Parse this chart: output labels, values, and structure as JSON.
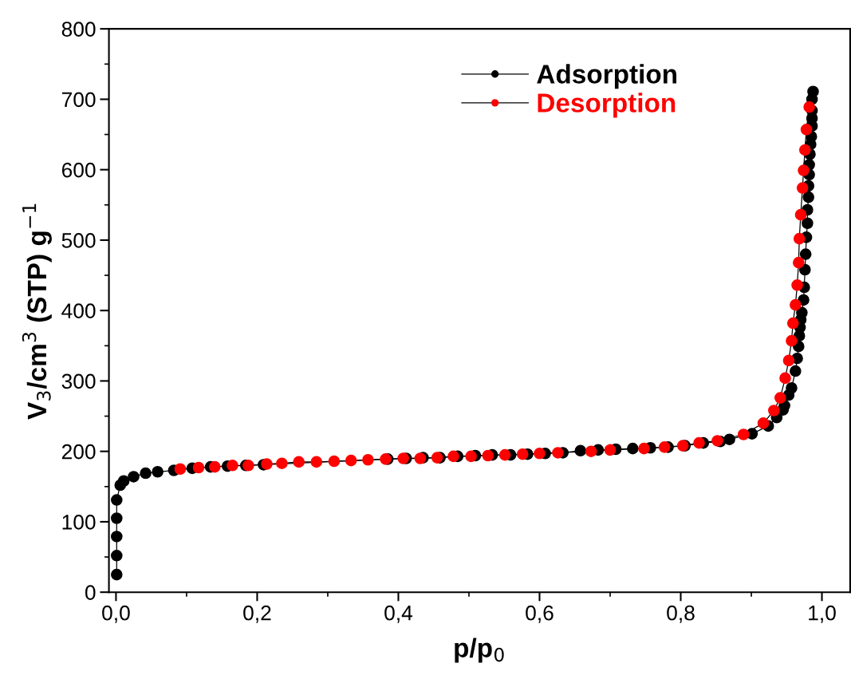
{
  "chart_data": {
    "type": "line",
    "xlabel": "p/p$_{0}$",
    "ylabel": "V$_{3}$/cm$^{3}$ (STP) g$^{−1}$",
    "xlim": [
      -0.01,
      1.04
    ],
    "ylim": [
      0,
      800
    ],
    "xticks": [
      {
        "value": 0.0,
        "label": "0,0"
      },
      {
        "value": 0.2,
        "label": "0,2"
      },
      {
        "value": 0.4,
        "label": "0,4"
      },
      {
        "value": 0.6,
        "label": "0,6"
      },
      {
        "value": 0.8,
        "label": "0,8"
      },
      {
        "value": 1.0,
        "label": "1,0"
      }
    ],
    "yticks": [
      0,
      100,
      200,
      300,
      400,
      500,
      600,
      700,
      800
    ],
    "grid": false,
    "legend": "top right",
    "marker": "circle",
    "line_style": "solid",
    "series": [
      {
        "name": "Adsorption",
        "color": "#000000",
        "x": [
          0.001,
          0.001,
          0.001,
          0.001,
          0.001,
          0.006,
          0.011,
          0.025,
          0.042,
          0.059,
          0.082,
          0.108,
          0.134,
          0.158,
          0.184,
          0.209,
          0.385,
          0.411,
          0.435,
          0.459,
          0.484,
          0.509,
          0.533,
          0.559,
          0.583,
          0.608,
          0.633,
          0.658,
          0.683,
          0.708,
          0.732,
          0.757,
          0.782,
          0.806,
          0.832,
          0.856,
          0.869,
          0.901,
          0.924,
          0.936,
          0.945,
          0.947,
          0.953,
          0.957,
          0.9625,
          0.965,
          0.967,
          0.968,
          0.969,
          0.97,
          0.9716,
          0.974,
          0.975,
          0.976,
          0.977,
          0.978,
          0.9795,
          0.9795,
          0.981,
          0.981,
          0.982,
          0.982,
          0.983,
          0.984,
          0.985,
          0.986,
          0.986,
          0.986,
          0.986,
          0.9875
        ],
        "values": [
          25,
          52,
          79,
          105,
          131,
          152,
          158,
          164,
          169,
          171,
          173,
          176,
          178,
          179,
          180,
          181,
          189,
          190,
          191,
          191,
          193,
          194,
          195,
          195,
          196,
          197,
          198,
          201,
          202,
          203,
          204,
          205,
          206,
          208,
          212,
          214,
          217,
          225,
          236,
          248,
          259,
          265,
          280,
          290,
          314,
          332,
          349,
          364,
          376,
          387,
          397,
          415,
          433,
          458,
          480,
          504,
          524,
          543,
          561,
          577,
          593,
          607,
          622,
          636,
          647,
          662,
          673,
          684,
          700,
          711
        ]
      },
      {
        "name": "Desorption",
        "color": "#ff0000",
        "x": [
          0.982,
          0.978,
          0.976,
          0.974,
          0.9725,
          0.97,
          0.968,
          0.967,
          0.965,
          0.9625,
          0.959,
          0.957,
          0.953,
          0.948,
          0.941,
          0.932,
          0.917,
          0.889,
          0.852,
          0.826,
          0.803,
          0.777,
          0.748,
          0.7,
          0.673,
          0.626,
          0.6,
          0.576,
          0.551,
          0.527,
          0.503,
          0.478,
          0.455,
          0.431,
          0.407,
          0.382,
          0.357,
          0.333,
          0.309,
          0.284,
          0.259,
          0.235,
          0.2136,
          0.1875,
          0.165,
          0.14,
          0.117,
          0.091
        ],
        "values": [
          689,
          657,
          628,
          599,
          574,
          536,
          502,
          468,
          436,
          408,
          382,
          357,
          329,
          304,
          276,
          258,
          240,
          224,
          215,
          212,
          208,
          206,
          204,
          202,
          200,
          198,
          197,
          196,
          195,
          194,
          193,
          193,
          191,
          190,
          190,
          189,
          188,
          187,
          186,
          185,
          185,
          183,
          182,
          180,
          180,
          178,
          177,
          175
        ]
      }
    ]
  }
}
